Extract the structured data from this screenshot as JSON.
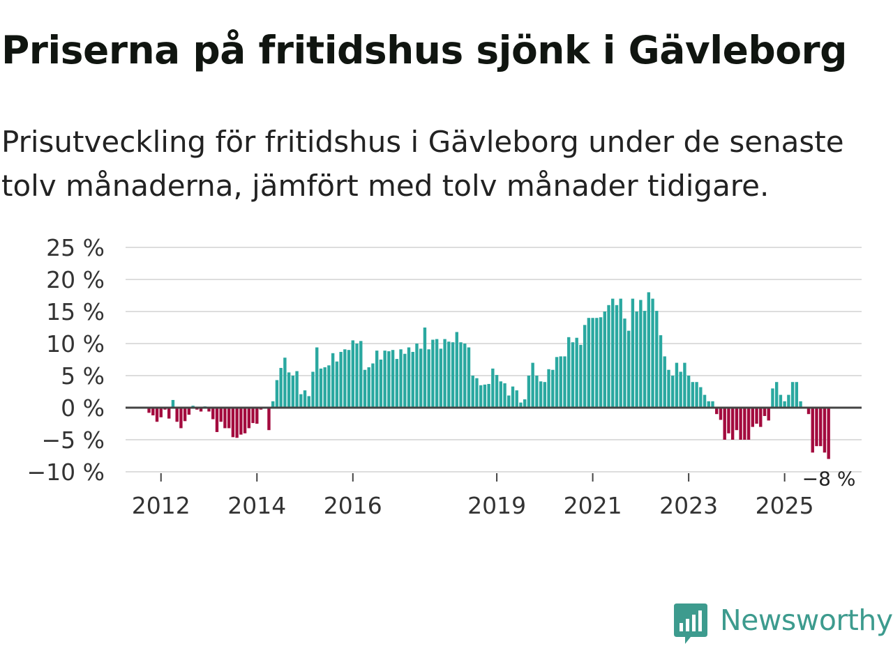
{
  "title": "Priserna på fritidshus sjönk i Gävleborg",
  "subtitle": "Prisutveckling för fritidshus i Gävleborg under de senaste tolv månaderna, jämfört med tolv månader tidigare.",
  "brand": {
    "name": "Newsworthy",
    "color": "#3d9b8e"
  },
  "colors": {
    "positive": "#2aa8a0",
    "negative": "#a30b3e",
    "grid": "#dddddd",
    "zero_line": "#444444",
    "text": "#333333"
  },
  "chart_data": {
    "type": "bar",
    "start": "2011-01",
    "ylim": [
      -10,
      25
    ],
    "yticks": [
      25,
      20,
      15,
      10,
      5,
      0,
      -5,
      -10
    ],
    "ytick_labels": [
      "25 %",
      "20 %",
      "15 %",
      "10 %",
      "5 %",
      "0 %",
      "−5 %",
      "−10 %"
    ],
    "xticks": [
      {
        "label": "2012",
        "month_index": 12
      },
      {
        "label": "2014",
        "month_index": 36
      },
      {
        "label": "2016",
        "month_index": 60
      },
      {
        "label": "2019",
        "month_index": 96
      },
      {
        "label": "2021",
        "month_index": 120
      },
      {
        "label": "2023",
        "month_index": 144
      },
      {
        "label": "2025",
        "month_index": 168
      }
    ],
    "last_value_label": "−8 %",
    "values": [
      null,
      null,
      null,
      null,
      null,
      null,
      null,
      null,
      null,
      -0.8,
      -1.2,
      -2.2,
      -1.5,
      -0.3,
      -1.7,
      1.2,
      -2.2,
      -3.2,
      -2.1,
      -1.1,
      0.3,
      -0.3,
      -0.6,
      0.2,
      -0.6,
      -1.8,
      -3.8,
      -2.2,
      -3.2,
      -3.2,
      -4.6,
      -4.7,
      -4.2,
      -4,
      -3.2,
      -2.4,
      -2.5,
      -0.3,
      null,
      -3.5,
      1,
      4.3,
      6.2,
      7.8,
      5.5,
      5,
      5.7,
      2.1,
      2.7,
      1.8,
      5.6,
      9.4,
      6.1,
      6.3,
      6.6,
      8.5,
      7.2,
      8.7,
      9.1,
      9,
      10.5,
      10,
      10.4,
      5.9,
      6.3,
      6.9,
      8.9,
      7.5,
      8.9,
      8.8,
      9,
      7.6,
      9.1,
      8.4,
      9.4,
      8.7,
      10,
      9.2,
      12.5,
      9.1,
      10.6,
      10.7,
      9.2,
      10.7,
      10.3,
      10.2,
      11.8,
      10.2,
      10,
      9.4,
      5,
      4.6,
      3.5,
      3.6,
      3.7,
      6.1,
      5.1,
      4.1,
      3.8,
      1.9,
      3.3,
      2.7,
      0.8,
      1.3,
      5,
      7,
      5,
      4.1,
      4,
      6,
      5.9,
      7.9,
      8,
      8,
      11,
      10.2,
      10.9,
      9.8,
      12.9,
      14,
      14,
      14,
      14.1,
      15,
      16,
      17,
      16,
      17,
      13.9,
      12,
      17,
      15,
      16.8,
      15.1,
      18,
      17,
      15.1,
      11.3,
      8,
      5.9,
      5,
      7,
      5.6,
      7,
      5,
      4,
      4,
      3.2,
      2,
      1,
      1,
      -1,
      -1.9,
      -5,
      -4,
      -5,
      -3.5,
      -5,
      -5,
      -5,
      -3,
      -2.5,
      -3,
      -1.3,
      -2,
      3,
      4,
      2,
      1,
      2,
      4,
      4,
      1,
      null,
      -1,
      -7,
      -6,
      -6,
      -7,
      -8
    ]
  }
}
